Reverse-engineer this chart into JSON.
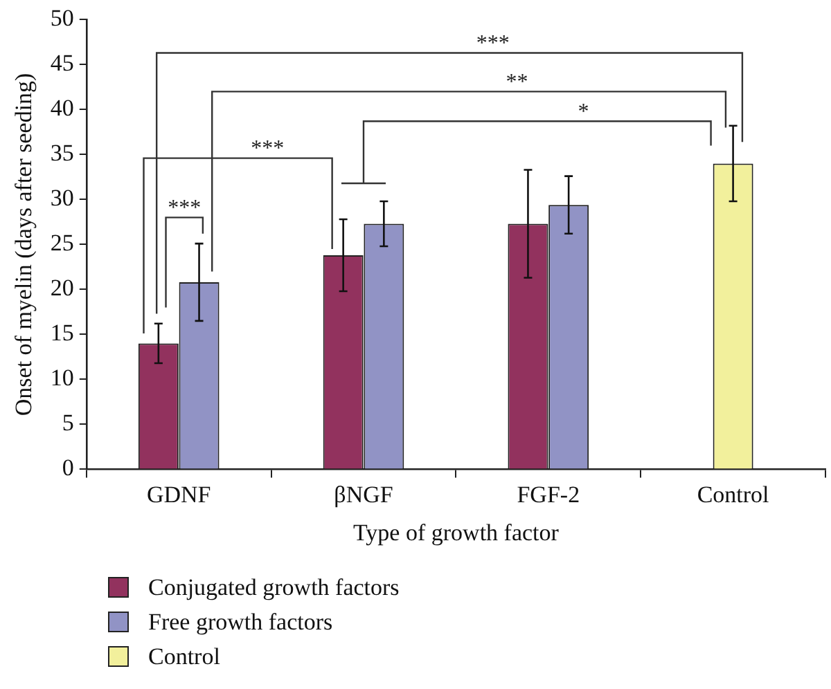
{
  "chart_data": {
    "type": "bar",
    "xlabel": "Type of growth factor",
    "ylabel": "Onset of myelin (days after seeding)",
    "categories": [
      "GDNF",
      "βNGF",
      "FGF-2",
      "Control"
    ],
    "series": [
      {
        "name": "Conjugated growth factors",
        "color": "#92325e",
        "values": [
          14.0,
          23.8,
          27.3,
          null
        ],
        "errors": [
          2.2,
          4.0,
          6.0,
          null
        ]
      },
      {
        "name": "Free growth factors",
        "color": "#9193c5",
        "values": [
          20.8,
          27.3,
          29.4,
          null
        ],
        "errors": [
          4.3,
          2.5,
          3.2,
          null
        ]
      },
      {
        "name": "Control",
        "color": "#f2f09c",
        "values": [
          null,
          null,
          null,
          34.0
        ],
        "errors": [
          null,
          null,
          null,
          4.2
        ]
      }
    ],
    "ylim": [
      0,
      50
    ],
    "yticks": [
      0,
      5,
      10,
      15,
      20,
      25,
      30,
      35,
      40,
      45,
      50
    ],
    "grid": false,
    "legend": "bottom left",
    "annotations": [
      "***",
      "**",
      "*",
      "***",
      "***"
    ]
  }
}
